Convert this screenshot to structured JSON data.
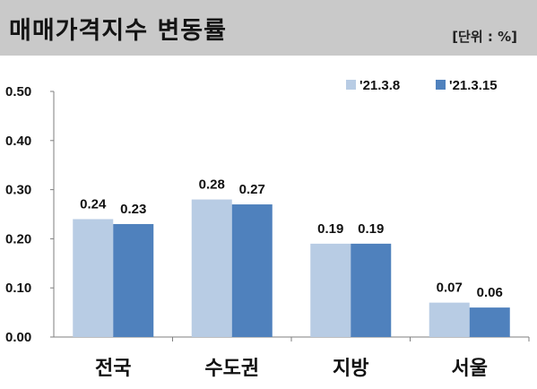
{
  "header": {
    "title": "매매가격지수 변동률",
    "unit": "[단위 : %]"
  },
  "colors": {
    "header_bg": "#c9c9c9",
    "series1": "#b8cce4",
    "series2": "#4f81bd"
  },
  "chart_data": {
    "type": "bar",
    "title": "매매가격지수 변동률",
    "xlabel": "",
    "ylabel": "",
    "categories": [
      "전국",
      "수도권",
      "지방",
      "서울"
    ],
    "series": [
      {
        "name": "'21.3.8",
        "values": [
          0.24,
          0.28,
          0.19,
          0.07
        ],
        "labels": [
          "0.24",
          "0.28",
          "0.19",
          "0.07"
        ]
      },
      {
        "name": "'21.3.15",
        "values": [
          0.23,
          0.27,
          0.19,
          0.06
        ],
        "labels": [
          "0.23",
          "0.27",
          "0.19",
          "0.06"
        ]
      }
    ],
    "ylim": [
      0,
      0.5
    ],
    "yticks": [
      "0.00",
      "0.10",
      "0.20",
      "0.30",
      "0.40",
      "0.50"
    ],
    "grid": false,
    "legend_position": "top-right"
  }
}
